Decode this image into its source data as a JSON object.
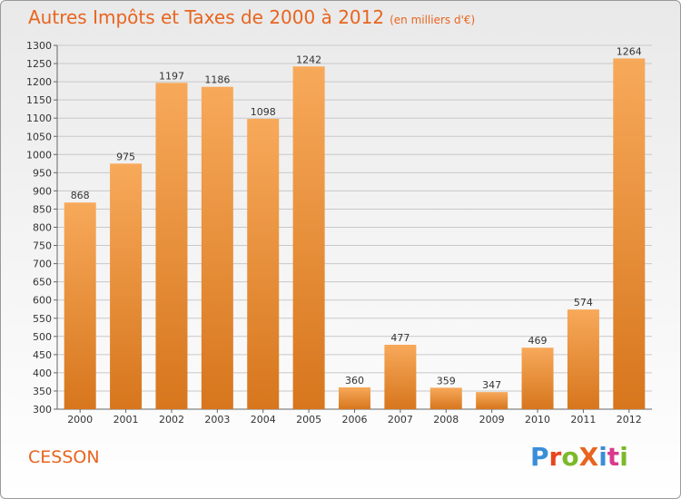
{
  "header": {
    "title": "Autres Impôts et Taxes de 2000 à 2012",
    "subtitle": "(en milliers d'€)"
  },
  "footer": {
    "place": "CESSON",
    "logo": "ProXiti"
  },
  "colors": {
    "title": "#e8651f",
    "bar_light": "#f7a95a",
    "bar_dark": "#d7761d",
    "grid": "#c8c8c8",
    "logo_letters": [
      "#3a8ed8",
      "#e8451f",
      "#7cb92a",
      "#e8651f",
      "#3a8ed8",
      "#d93a8e",
      "#7cb92a"
    ]
  },
  "chart_data": {
    "type": "bar",
    "title": "Autres Impôts et Taxes de 2000 à 2012",
    "subtitle": "(en milliers d'€)",
    "categories": [
      "2000",
      "2001",
      "2002",
      "2003",
      "2004",
      "2005",
      "2006",
      "2007",
      "2008",
      "2009",
      "2010",
      "2011",
      "2012"
    ],
    "values": [
      868,
      975,
      1197,
      1186,
      1098,
      1242,
      360,
      477,
      359,
      347,
      469,
      574,
      1264
    ],
    "ylim": [
      300,
      1300
    ],
    "yticks": [
      300,
      350,
      400,
      450,
      500,
      550,
      600,
      650,
      700,
      750,
      800,
      850,
      900,
      950,
      1000,
      1050,
      1100,
      1150,
      1200,
      1250,
      1300
    ],
    "grid": true,
    "xlabel": "",
    "ylabel": ""
  }
}
